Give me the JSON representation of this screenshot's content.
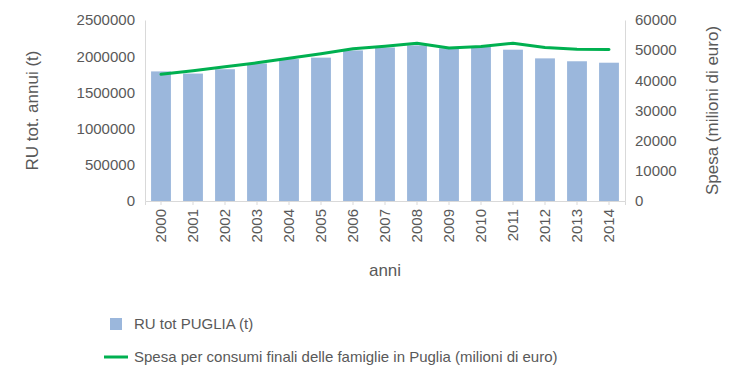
{
  "chart_data": {
    "type": "bar",
    "categories": [
      "2000",
      "2001",
      "2002",
      "2003",
      "2004",
      "2005",
      "2006",
      "2007",
      "2008",
      "2009",
      "2010",
      "2011",
      "2012",
      "2013",
      "2014"
    ],
    "x_label": "anni",
    "y_label": "RU tot. annui (t)",
    "y2_label": "Spesa  (milioni di euro)",
    "ylim": [
      0,
      2500000
    ],
    "yticks": [
      0,
      500000,
      1000000,
      1500000,
      2000000,
      2500000
    ],
    "y2lim": [
      0,
      60000
    ],
    "y2ticks": [
      0,
      10000,
      20000,
      30000,
      40000,
      50000,
      60000
    ],
    "grid": false,
    "legend": "bottom",
    "series": [
      {
        "name": "RU tot PUGLIA (t)",
        "type": "bar",
        "color": "#9bb7dc",
        "values": [
          1790000,
          1760000,
          1820000,
          1900000,
          1960000,
          1980000,
          2080000,
          2120000,
          2150000,
          2110000,
          2130000,
          2090000,
          1970000,
          1930000,
          1910000
        ]
      },
      {
        "name": "Spesa per consumi finali delle famiglie in Puglia (milioni di euro)",
        "type": "line",
        "axis": "y2",
        "color": "#00b050",
        "values": [
          42000,
          43200,
          44500,
          45800,
          47300,
          48800,
          50500,
          51300,
          52300,
          50700,
          51200,
          52300,
          50900,
          50300,
          50200
        ]
      }
    ]
  }
}
